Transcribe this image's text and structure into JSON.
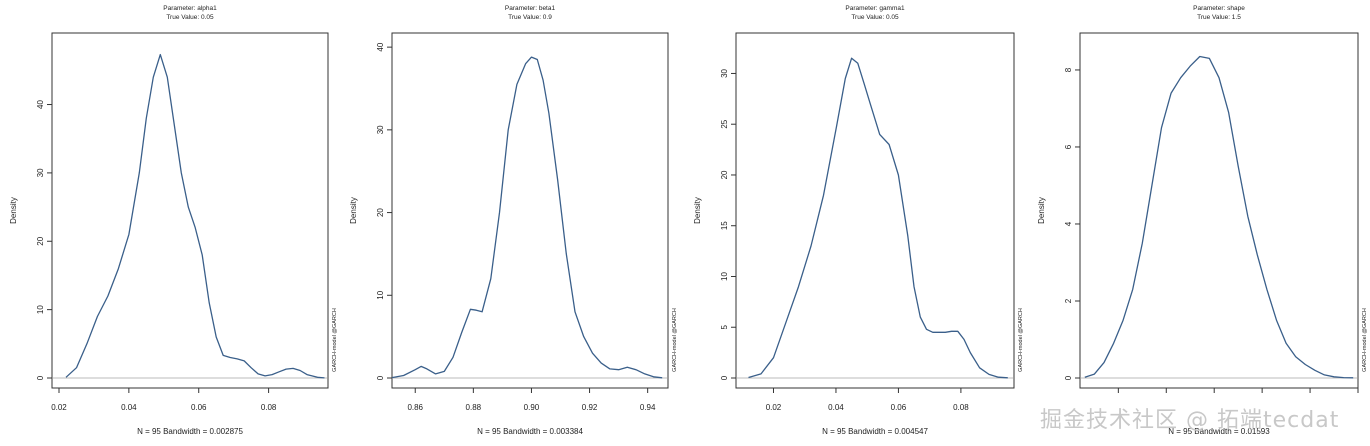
{
  "watermark": "掘金技术社区 @ 拓端tecdat",
  "side_note": "GARCH-model  @GARCH",
  "chart_data": [
    {
      "type": "line",
      "title": "Parameter: alpha1",
      "subtitle": "True Value:  0.05",
      "xlabel": "N = 95   Bandwidth = 0.002875",
      "ylabel": "Density",
      "xlim": [
        0.018,
        0.097
      ],
      "ylim": [
        0,
        49
      ],
      "xticks": [
        0.02,
        0.04,
        0.06,
        0.08
      ],
      "xtick_labels": [
        "0.02",
        "0.04",
        "0.06",
        "0.08"
      ],
      "yticks": [
        0,
        10,
        20,
        30,
        40
      ],
      "grid": false,
      "series": [
        {
          "x": [
            0.022,
            0.025,
            0.028,
            0.031,
            0.034,
            0.037,
            0.04,
            0.043,
            0.045,
            0.047,
            0.049,
            0.051,
            0.053,
            0.055,
            0.057,
            0.059,
            0.061,
            0.063,
            0.065,
            0.067,
            0.069,
            0.071,
            0.073,
            0.075,
            0.077,
            0.079,
            0.081,
            0.083,
            0.085,
            0.087,
            0.089,
            0.091,
            0.094,
            0.096
          ],
          "y": [
            0.1,
            1.5,
            5,
            9,
            12,
            16,
            21,
            30,
            38,
            44,
            47.3,
            44,
            37,
            30,
            25,
            22,
            18,
            11,
            6,
            3.3,
            3,
            2.8,
            2.5,
            1.5,
            0.6,
            0.3,
            0.5,
            0.9,
            1.3,
            1.4,
            1.1,
            0.5,
            0.1,
            0.02
          ]
        }
      ]
    },
    {
      "type": "line",
      "title": "Parameter: beta1",
      "subtitle": "True Value:  0.9",
      "xlabel": "N = 95   Bandwidth = 0.003384",
      "ylabel": "Density",
      "xlim": [
        0.852,
        0.947
      ],
      "ylim": [
        0,
        40.5
      ],
      "xticks": [
        0.86,
        0.88,
        0.9,
        0.92,
        0.94
      ],
      "xtick_labels": [
        "0.86",
        "0.88",
        "0.90",
        "0.92",
        "0.94"
      ],
      "yticks": [
        0,
        10,
        20,
        30,
        40
      ],
      "grid": false,
      "series": [
        {
          "x": [
            0.852,
            0.856,
            0.86,
            0.862,
            0.864,
            0.867,
            0.87,
            0.873,
            0.876,
            0.879,
            0.881,
            0.883,
            0.886,
            0.889,
            0.892,
            0.895,
            0.898,
            0.9,
            0.902,
            0.904,
            0.906,
            0.909,
            0.912,
            0.915,
            0.918,
            0.921,
            0.924,
            0.927,
            0.93,
            0.933,
            0.936,
            0.939,
            0.942,
            0.945
          ],
          "y": [
            0.05,
            0.3,
            1.0,
            1.4,
            1.1,
            0.5,
            0.8,
            2.5,
            5.5,
            8.3,
            8.2,
            8.0,
            12,
            20,
            30,
            35.5,
            38,
            38.8,
            38.5,
            36,
            32,
            24,
            15,
            8,
            5,
            3,
            1.8,
            1.1,
            1.0,
            1.3,
            1.0,
            0.5,
            0.15,
            0.03
          ]
        }
      ]
    },
    {
      "type": "line",
      "title": "Parameter: gamma1",
      "subtitle": "True Value:  0.05",
      "xlabel": "N = 95   Bandwidth = 0.004547",
      "ylabel": "Density",
      "xlim": [
        0.008,
        0.097
      ],
      "ylim": [
        0,
        33
      ],
      "xticks": [
        0.02,
        0.04,
        0.06,
        0.08
      ],
      "xtick_labels": [
        "0.02",
        "0.04",
        "0.06",
        "0.08"
      ],
      "yticks": [
        0,
        5,
        10,
        15,
        20,
        25,
        30
      ],
      "grid": false,
      "series": [
        {
          "x": [
            0.012,
            0.016,
            0.02,
            0.024,
            0.028,
            0.032,
            0.036,
            0.04,
            0.043,
            0.045,
            0.047,
            0.049,
            0.051,
            0.054,
            0.057,
            0.06,
            0.063,
            0.065,
            0.067,
            0.069,
            0.071,
            0.073,
            0.075,
            0.077,
            0.079,
            0.081,
            0.083,
            0.086,
            0.089,
            0.092,
            0.095
          ],
          "y": [
            0.05,
            0.4,
            2,
            5.5,
            9,
            13,
            18,
            24.5,
            29.5,
            31.5,
            31,
            29,
            27,
            24,
            23,
            20,
            14,
            9,
            6,
            4.8,
            4.5,
            4.5,
            4.5,
            4.6,
            4.6,
            3.8,
            2.5,
            1,
            0.35,
            0.08,
            0.02
          ]
        }
      ]
    },
    {
      "type": "line",
      "title": "Parameter: shape",
      "subtitle": "True Value:  1.5",
      "xlabel": "N = 95   Bandwidth = 0.01593",
      "ylabel": "Density",
      "xlim": [
        1.36,
        1.65
      ],
      "ylim": [
        0,
        8.7
      ],
      "xticks": [
        1.4,
        1.45,
        1.5,
        1.55,
        1.6,
        1.65
      ],
      "xtick_labels": [
        "",
        "",
        "",
        "",
        "",
        ""
      ],
      "yticks": [
        0,
        2,
        4,
        6,
        8
      ],
      "grid": false,
      "series": [
        {
          "x": [
            1.365,
            1.375,
            1.385,
            1.395,
            1.405,
            1.415,
            1.425,
            1.435,
            1.445,
            1.455,
            1.465,
            1.475,
            1.485,
            1.495,
            1.505,
            1.515,
            1.525,
            1.535,
            1.545,
            1.555,
            1.565,
            1.575,
            1.585,
            1.595,
            1.605,
            1.615,
            1.625,
            1.635,
            1.645
          ],
          "y": [
            0.02,
            0.1,
            0.4,
            0.9,
            1.5,
            2.3,
            3.5,
            5,
            6.5,
            7.4,
            7.8,
            8.1,
            8.35,
            8.3,
            7.8,
            6.9,
            5.5,
            4.2,
            3.2,
            2.3,
            1.5,
            0.9,
            0.55,
            0.35,
            0.2,
            0.08,
            0.03,
            0.01,
            0.005
          ]
        }
      ]
    }
  ]
}
